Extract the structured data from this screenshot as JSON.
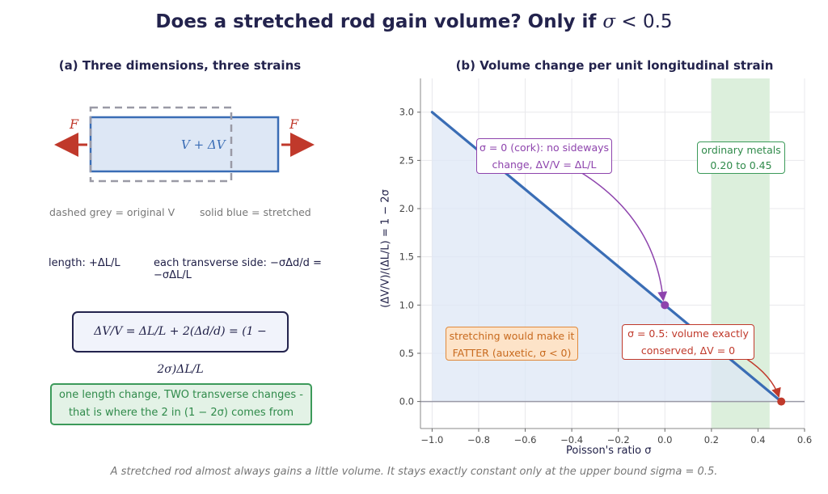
{
  "title": {
    "prefix": "Does a stretched rod gain volume? Only if ",
    "symbol": "σ",
    "rest": " < 0.5"
  },
  "panel_a": {
    "title": "(a) Three dimensions, three strains",
    "force_label": "F",
    "volume_label": "V + ΔV",
    "legend_dashed": "dashed grey = original V",
    "legend_solid": "solid blue = stretched",
    "length_text": "length:  +ΔL/L",
    "transverse_text": "each transverse side:  −σΔd/d = −σΔL/L",
    "formula": "ΔV/V = ΔL/L + 2(Δd/d) = (1 − 2σ)ΔL/L",
    "note_line1": "one length change, TWO transverse changes -",
    "note_line2": "that is where the 2 in (1 − 2σ) comes from"
  },
  "panel_b": {
    "title": "(b) Volume change per unit longitudinal strain",
    "ann_cork_line1": "σ = 0 (cork): no sideways",
    "ann_cork_line2": "change, ΔV/V = ΔL/L",
    "ann_metals_line1": "ordinary metals",
    "ann_metals_line2": "0.20 to 0.45",
    "ann_auxetic_line1": "stretching would make it",
    "ann_auxetic_line2": "FATTER (auxetic, σ < 0)",
    "ann_bound_line1": "σ = 0.5: volume exactly",
    "ann_bound_line2": "conserved, ΔV = 0"
  },
  "caption": "A stretched rod almost always gains a little volume. It stays exactly constant only at the upper bound sigma = 0.5.",
  "colors": {
    "line": "#3a6db5",
    "fill": "#dde7f5",
    "metals_band": "#dcefdc",
    "purple": "#8e44ad",
    "red": "#c0392b",
    "orange": "#e08a3c",
    "green": "#3c9a5a"
  },
  "chart_data": {
    "type": "line",
    "title": "(b) Volume change per unit longitudinal strain",
    "xlabel": "Poisson's ratio σ",
    "ylabel": "(ΔV/V)/(ΔL/L) = 1 − 2σ",
    "xlim": [
      -1.05,
      0.6
    ],
    "ylim": [
      -0.28,
      3.35
    ],
    "x_ticks": [
      -1.0,
      -0.8,
      -0.6,
      -0.4,
      -0.2,
      0.0,
      0.2,
      0.4,
      0.6
    ],
    "x_tick_labels": [
      "−1.0",
      "−0.8",
      "−0.6",
      "−0.4",
      "−0.2",
      "0.0",
      "0.2",
      "0.4",
      "0.6"
    ],
    "y_ticks": [
      0.0,
      0.5,
      1.0,
      1.5,
      2.0,
      2.5,
      3.0
    ],
    "y_tick_labels": [
      "0.0",
      "0.5",
      "1.0",
      "1.5",
      "2.0",
      "2.5",
      "3.0"
    ],
    "series": [
      {
        "x": [
          -1.0,
          0.5
        ],
        "y": [
          3.0,
          0.0
        ]
      }
    ],
    "highlight_points": [
      {
        "x": 0.0,
        "y": 1.0
      },
      {
        "x": 0.5,
        "y": 0.0
      }
    ],
    "shaded_band": {
      "x_from": 0.2,
      "x_to": 0.45
    },
    "grid": true
  }
}
